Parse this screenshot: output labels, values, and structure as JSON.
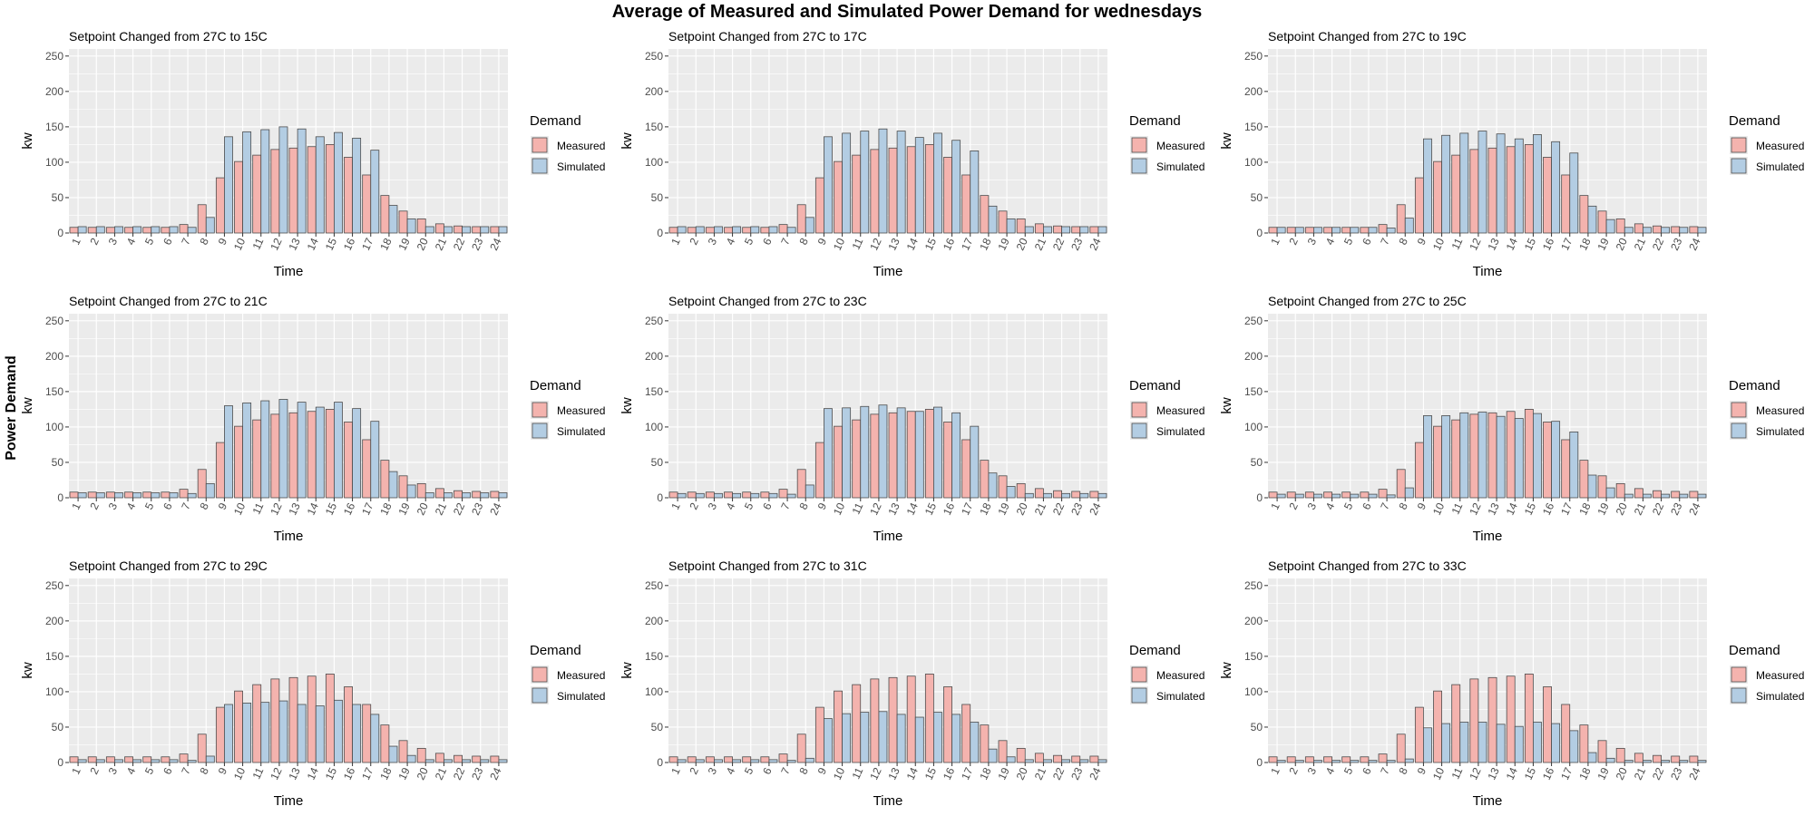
{
  "title": "Average of Measured and Simulated Power Demand for wednesdays",
  "ylabel_outer": "Power Demand",
  "colors": {
    "measured_fill": "#f4b3ae",
    "simulated_fill": "#b3cde3",
    "bar_stroke": "#4d4d4d",
    "panel_bg": "#ebebeb",
    "grid": "#ffffff"
  },
  "chart_data": [
    {
      "type": "bar",
      "title": "Setpoint Changed from 27C to 15C",
      "xlabel": "Time",
      "ylabel": "kw",
      "ylim": [
        0,
        260
      ],
      "yticks": [
        0,
        50,
        100,
        150,
        200,
        250
      ],
      "categories": [
        "1",
        "2",
        "3",
        "4",
        "5",
        "6",
        "7",
        "8",
        "9",
        "10",
        "11",
        "12",
        "13",
        "14",
        "15",
        "16",
        "17",
        "18",
        "19",
        "20",
        "21",
        "22",
        "23",
        "24"
      ],
      "legend": {
        "title": "Demand",
        "entries": [
          "Measured",
          "Simulated"
        ],
        "position": "right"
      },
      "series": [
        {
          "name": "Measured",
          "values": [
            8,
            8,
            8,
            8,
            8,
            8,
            12,
            40,
            78,
            101,
            110,
            118,
            120,
            122,
            125,
            107,
            82,
            53,
            31,
            20,
            13,
            10,
            9,
            9
          ]
        },
        {
          "name": "Simulated",
          "values": [
            9,
            9,
            9,
            9,
            9,
            9,
            8,
            22,
            136,
            143,
            146,
            150,
            147,
            136,
            142,
            134,
            117,
            39,
            20,
            9,
            9,
            9,
            9,
            9
          ]
        }
      ]
    },
    {
      "type": "bar",
      "title": "Setpoint Changed from 27C to 17C",
      "xlabel": "Time",
      "ylabel": "kw",
      "ylim": [
        0,
        260
      ],
      "yticks": [
        0,
        50,
        100,
        150,
        200,
        250
      ],
      "categories": [
        "1",
        "2",
        "3",
        "4",
        "5",
        "6",
        "7",
        "8",
        "9",
        "10",
        "11",
        "12",
        "13",
        "14",
        "15",
        "16",
        "17",
        "18",
        "19",
        "20",
        "21",
        "22",
        "23",
        "24"
      ],
      "legend": {
        "title": "Demand",
        "entries": [
          "Measured",
          "Simulated"
        ],
        "position": "right"
      },
      "series": [
        {
          "name": "Measured",
          "values": [
            8,
            8,
            8,
            8,
            8,
            8,
            12,
            40,
            78,
            101,
            110,
            118,
            120,
            122,
            125,
            107,
            82,
            53,
            31,
            20,
            13,
            10,
            9,
            9
          ]
        },
        {
          "name": "Simulated",
          "values": [
            9,
            9,
            9,
            9,
            9,
            9,
            8,
            22,
            136,
            141,
            144,
            147,
            144,
            135,
            141,
            131,
            116,
            38,
            20,
            9,
            9,
            9,
            9,
            9
          ]
        }
      ]
    },
    {
      "type": "bar",
      "title": "Setpoint Changed from 27C to 19C",
      "xlabel": "Time",
      "ylabel": "kw",
      "ylim": [
        0,
        260
      ],
      "yticks": [
        0,
        50,
        100,
        150,
        200,
        250
      ],
      "categories": [
        "1",
        "2",
        "3",
        "4",
        "5",
        "6",
        "7",
        "8",
        "9",
        "10",
        "11",
        "12",
        "13",
        "14",
        "15",
        "16",
        "17",
        "18",
        "19",
        "20",
        "21",
        "22",
        "23",
        "24"
      ],
      "legend": {
        "title": "Demand",
        "entries": [
          "Measured",
          "Simulated"
        ],
        "position": "right"
      },
      "series": [
        {
          "name": "Measured",
          "values": [
            8,
            8,
            8,
            8,
            8,
            8,
            12,
            40,
            78,
            101,
            110,
            118,
            120,
            122,
            125,
            107,
            82,
            53,
            31,
            20,
            13,
            10,
            9,
            9
          ]
        },
        {
          "name": "Simulated",
          "values": [
            8,
            8,
            8,
            8,
            8,
            8,
            7,
            21,
            133,
            138,
            141,
            144,
            140,
            133,
            139,
            129,
            113,
            38,
            19,
            8,
            8,
            8,
            8,
            8
          ]
        }
      ]
    },
    {
      "type": "bar",
      "title": "Setpoint Changed from 27C to 21C",
      "xlabel": "Time",
      "ylabel": "kw",
      "ylim": [
        0,
        260
      ],
      "yticks": [
        0,
        50,
        100,
        150,
        200,
        250
      ],
      "categories": [
        "1",
        "2",
        "3",
        "4",
        "5",
        "6",
        "7",
        "8",
        "9",
        "10",
        "11",
        "12",
        "13",
        "14",
        "15",
        "16",
        "17",
        "18",
        "19",
        "20",
        "21",
        "22",
        "23",
        "24"
      ],
      "legend": {
        "title": "Demand",
        "entries": [
          "Measured",
          "Simulated"
        ],
        "position": "right"
      },
      "series": [
        {
          "name": "Measured",
          "values": [
            8,
            8,
            8,
            8,
            8,
            8,
            12,
            40,
            78,
            101,
            110,
            118,
            120,
            122,
            125,
            107,
            82,
            53,
            31,
            20,
            13,
            10,
            9,
            9
          ]
        },
        {
          "name": "Simulated",
          "values": [
            7,
            7,
            7,
            7,
            7,
            7,
            6,
            20,
            130,
            134,
            137,
            139,
            135,
            128,
            135,
            126,
            108,
            37,
            18,
            7,
            7,
            7,
            7,
            7
          ]
        }
      ]
    },
    {
      "type": "bar",
      "title": "Setpoint Changed from 27C to 23C",
      "xlabel": "Time",
      "ylabel": "kw",
      "ylim": [
        0,
        260
      ],
      "yticks": [
        0,
        50,
        100,
        150,
        200,
        250
      ],
      "categories": [
        "1",
        "2",
        "3",
        "4",
        "5",
        "6",
        "7",
        "8",
        "9",
        "10",
        "11",
        "12",
        "13",
        "14",
        "15",
        "16",
        "17",
        "18",
        "19",
        "20",
        "21",
        "22",
        "23",
        "24"
      ],
      "legend": {
        "title": "Demand",
        "entries": [
          "Measured",
          "Simulated"
        ],
        "position": "right"
      },
      "series": [
        {
          "name": "Measured",
          "values": [
            8,
            8,
            8,
            8,
            8,
            8,
            12,
            40,
            78,
            101,
            110,
            118,
            120,
            122,
            125,
            107,
            82,
            53,
            31,
            20,
            13,
            10,
            9,
            9
          ]
        },
        {
          "name": "Simulated",
          "values": [
            6,
            6,
            6,
            6,
            6,
            6,
            5,
            18,
            126,
            127,
            129,
            131,
            127,
            122,
            128,
            120,
            101,
            35,
            16,
            6,
            6,
            6,
            6,
            6
          ]
        }
      ]
    },
    {
      "type": "bar",
      "title": "Setpoint Changed from 27C to 25C",
      "xlabel": "Time",
      "ylabel": "kw",
      "ylim": [
        0,
        260
      ],
      "yticks": [
        0,
        50,
        100,
        150,
        200,
        250
      ],
      "categories": [
        "1",
        "2",
        "3",
        "4",
        "5",
        "6",
        "7",
        "8",
        "9",
        "10",
        "11",
        "12",
        "13",
        "14",
        "15",
        "16",
        "17",
        "18",
        "19",
        "20",
        "21",
        "22",
        "23",
        "24"
      ],
      "legend": {
        "title": "Demand",
        "entries": [
          "Measured",
          "Simulated"
        ],
        "position": "right"
      },
      "series": [
        {
          "name": "Measured",
          "values": [
            8,
            8,
            8,
            8,
            8,
            8,
            12,
            40,
            78,
            101,
            110,
            118,
            120,
            122,
            125,
            107,
            82,
            53,
            31,
            20,
            13,
            10,
            9,
            9
          ]
        },
        {
          "name": "Simulated",
          "values": [
            5,
            5,
            5,
            5,
            5,
            5,
            4,
            14,
            116,
            116,
            120,
            121,
            115,
            112,
            119,
            108,
            93,
            32,
            14,
            5,
            5,
            5,
            5,
            5
          ]
        }
      ]
    },
    {
      "type": "bar",
      "title": "Setpoint Changed from 27C to 29C",
      "xlabel": "Time",
      "ylabel": "kw",
      "ylim": [
        0,
        260
      ],
      "yticks": [
        0,
        50,
        100,
        150,
        200,
        250
      ],
      "categories": [
        "1",
        "2",
        "3",
        "4",
        "5",
        "6",
        "7",
        "8",
        "9",
        "10",
        "11",
        "12",
        "13",
        "14",
        "15",
        "16",
        "17",
        "18",
        "19",
        "20",
        "21",
        "22",
        "23",
        "24"
      ],
      "legend": {
        "title": "Demand",
        "entries": [
          "Measured",
          "Simulated"
        ],
        "position": "right"
      },
      "series": [
        {
          "name": "Measured",
          "values": [
            8,
            8,
            8,
            8,
            8,
            8,
            12,
            40,
            78,
            101,
            110,
            118,
            120,
            122,
            125,
            107,
            82,
            53,
            31,
            20,
            13,
            10,
            9,
            9
          ]
        },
        {
          "name": "Simulated",
          "values": [
            4,
            4,
            4,
            4,
            4,
            4,
            3,
            9,
            82,
            84,
            85,
            87,
            82,
            80,
            88,
            82,
            68,
            23,
            10,
            4,
            4,
            4,
            4,
            4
          ]
        }
      ]
    },
    {
      "type": "bar",
      "title": "Setpoint Changed from 27C to 31C",
      "xlabel": "Time",
      "ylabel": "kw",
      "ylim": [
        0,
        260
      ],
      "yticks": [
        0,
        50,
        100,
        150,
        200,
        250
      ],
      "categories": [
        "1",
        "2",
        "3",
        "4",
        "5",
        "6",
        "7",
        "8",
        "9",
        "10",
        "11",
        "12",
        "13",
        "14",
        "15",
        "16",
        "17",
        "18",
        "19",
        "20",
        "21",
        "22",
        "23",
        "24"
      ],
      "legend": {
        "title": "Demand",
        "entries": [
          "Measured",
          "Simulated"
        ],
        "position": "right"
      },
      "series": [
        {
          "name": "Measured",
          "values": [
            8,
            8,
            8,
            8,
            8,
            8,
            12,
            40,
            78,
            101,
            110,
            118,
            120,
            122,
            125,
            107,
            82,
            53,
            31,
            20,
            13,
            10,
            9,
            9
          ]
        },
        {
          "name": "Simulated",
          "values": [
            4,
            4,
            4,
            4,
            4,
            4,
            3,
            6,
            62,
            69,
            71,
            72,
            68,
            64,
            71,
            68,
            57,
            19,
            8,
            4,
            4,
            4,
            4,
            4
          ]
        }
      ]
    },
    {
      "type": "bar",
      "title": "Setpoint Changed from 27C to 33C",
      "xlabel": "Time",
      "ylabel": "kw",
      "ylim": [
        0,
        260
      ],
      "yticks": [
        0,
        50,
        100,
        150,
        200,
        250
      ],
      "categories": [
        "1",
        "2",
        "3",
        "4",
        "5",
        "6",
        "7",
        "8",
        "9",
        "10",
        "11",
        "12",
        "13",
        "14",
        "15",
        "16",
        "17",
        "18",
        "19",
        "20",
        "21",
        "22",
        "23",
        "24"
      ],
      "legend": {
        "title": "Demand",
        "entries": [
          "Measured",
          "Simulated"
        ],
        "position": "right"
      },
      "series": [
        {
          "name": "Measured",
          "values": [
            8,
            8,
            8,
            8,
            8,
            8,
            12,
            40,
            78,
            101,
            110,
            118,
            120,
            122,
            125,
            107,
            82,
            53,
            31,
            20,
            13,
            10,
            9,
            9
          ]
        },
        {
          "name": "Simulated",
          "values": [
            3,
            3,
            3,
            3,
            3,
            3,
            3,
            5,
            49,
            55,
            57,
            57,
            54,
            51,
            57,
            55,
            45,
            14,
            6,
            3,
            3,
            3,
            3,
            3
          ]
        }
      ]
    }
  ]
}
